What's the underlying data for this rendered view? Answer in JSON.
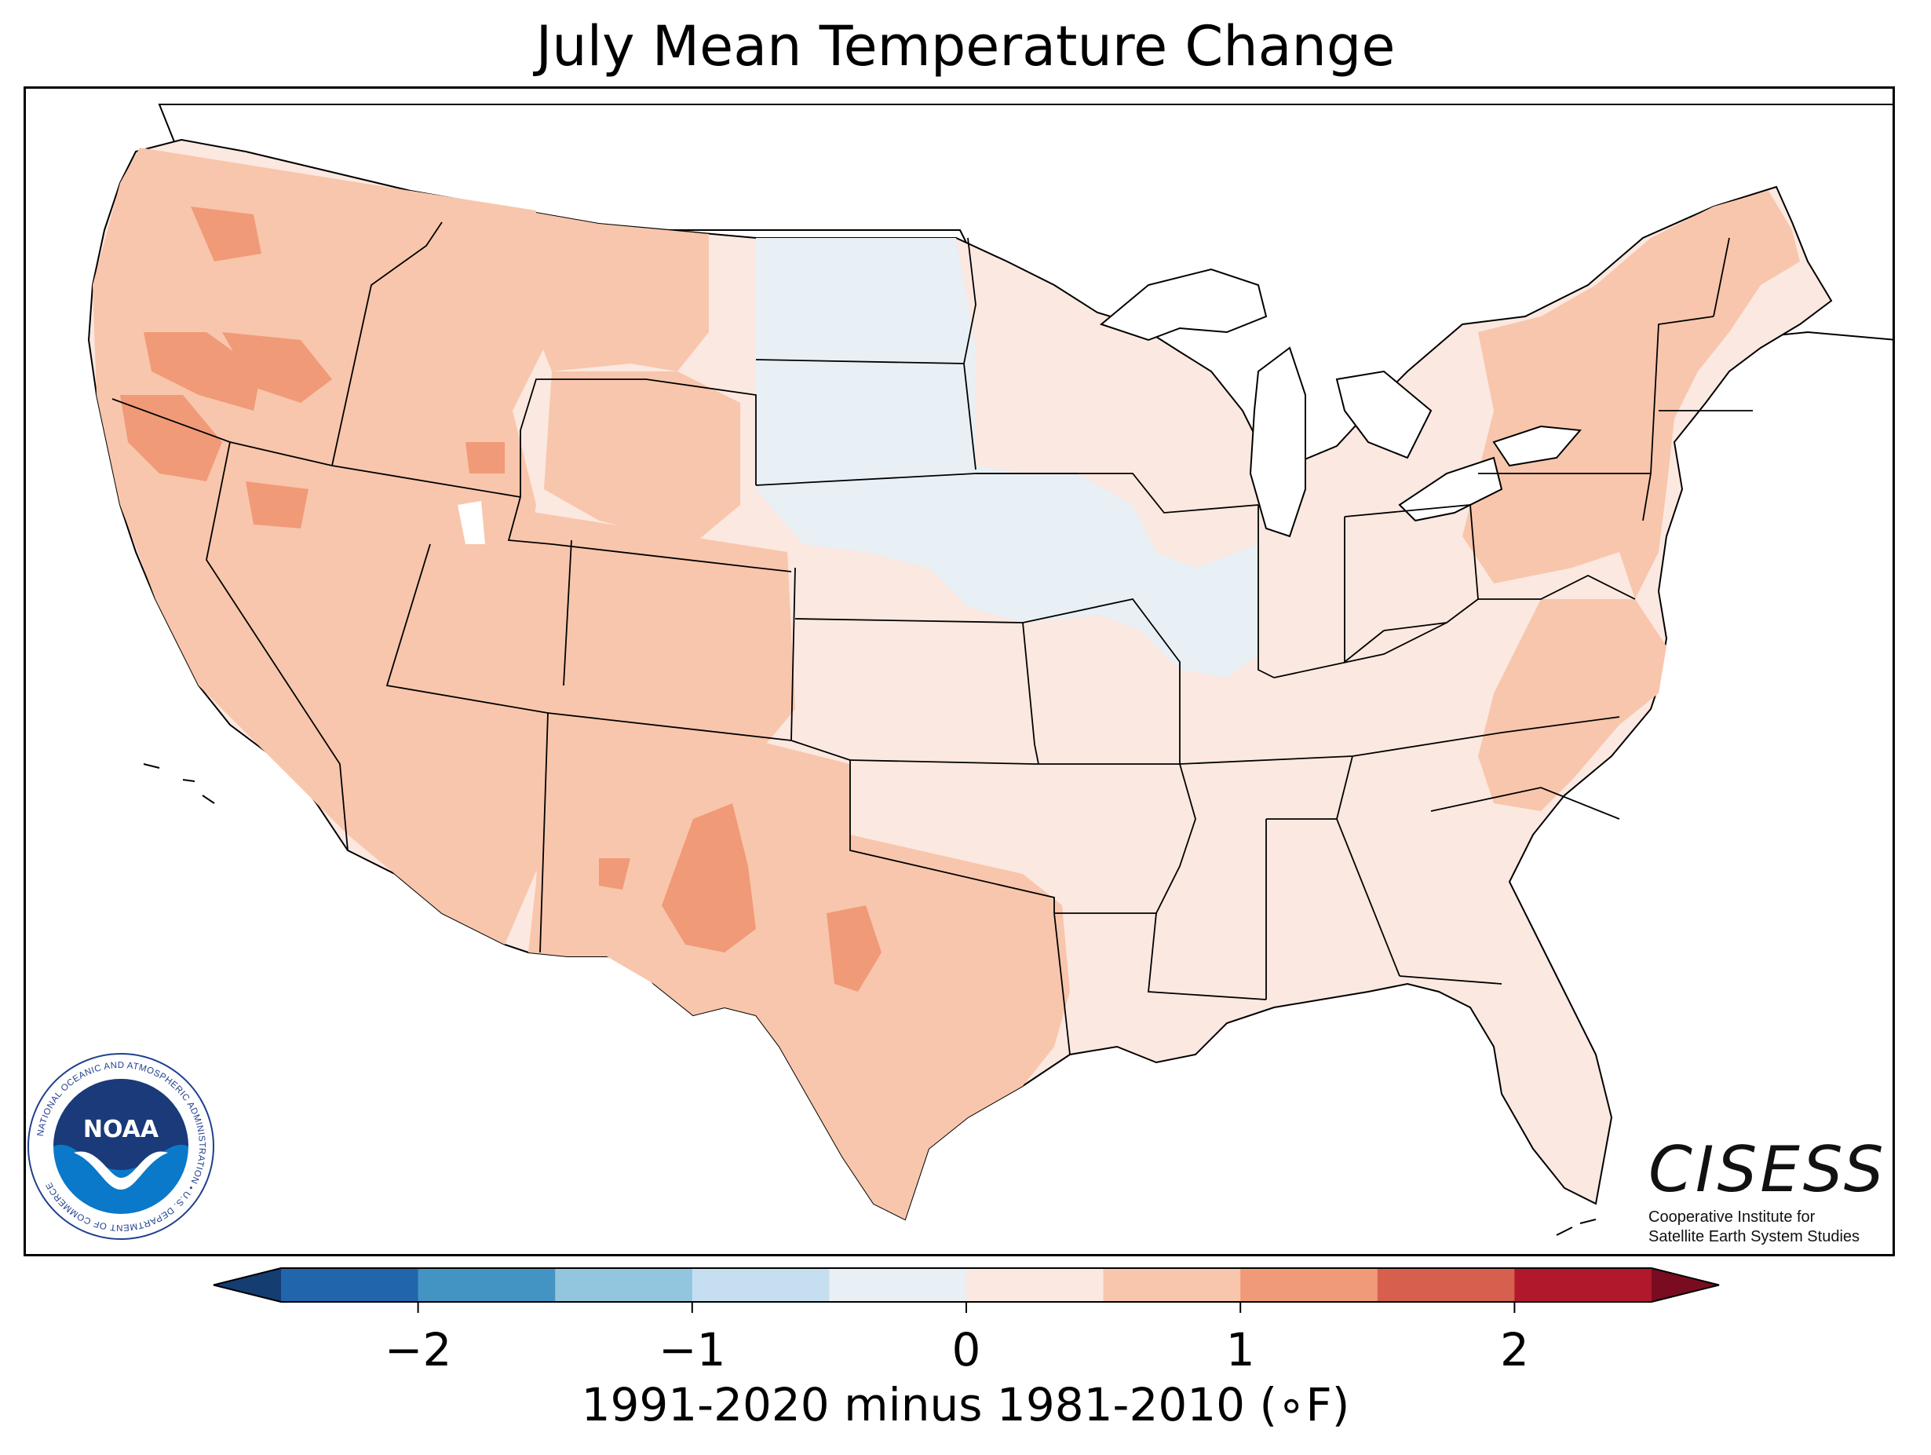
{
  "title": "July Mean Temperature Change",
  "colorbar": {
    "label": "1991-2020 minus 1981-2010 (∘F)",
    "ticks": [
      "−2",
      "−1",
      "0",
      "1",
      "2"
    ],
    "tick_values": [
      -2,
      -1,
      0,
      1,
      2
    ],
    "range": [
      -2.5,
      2.5
    ],
    "bin_edges": [
      -2.5,
      -2.0,
      -1.5,
      -1.0,
      -0.5,
      0.0,
      0.5,
      1.0,
      1.5,
      2.0,
      2.5
    ],
    "colors": [
      "#2166ac",
      "#4393c3",
      "#92c5de",
      "#c5dff0",
      "#e8eff5",
      "#fbe8e0",
      "#f8c6ac",
      "#f09a78",
      "#d6604d",
      "#b2182b"
    ],
    "under_color": "#143d72",
    "over_color": "#7a0c21"
  },
  "map": {
    "region": "Contiguous United States",
    "regions": [
      {
        "name": "Pacific Northwest",
        "value_band": "1.0 to 1.5"
      },
      {
        "name": "California",
        "value_band": "0.5 to 1.5"
      },
      {
        "name": "Great Basin",
        "value_band": "0.5 to 1.0"
      },
      {
        "name": "Northern Rockies",
        "value_band": "0.5 to 1.0"
      },
      {
        "name": "Southwest",
        "value_band": "0.5 to 1.0"
      },
      {
        "name": "New Mexico / West Texas",
        "value_band": "1.0 to 1.5"
      },
      {
        "name": "Texas",
        "value_band": "0.5 to 1.0"
      },
      {
        "name": "Northern Plains",
        "value_band": "-0.5 to 0.0"
      },
      {
        "name": "Upper Midwest / Iowa",
        "value_band": "-0.5 to 0.0"
      },
      {
        "name": "Southeast",
        "value_band": "0.0 to 0.5"
      },
      {
        "name": "Ohio Valley",
        "value_band": "0.0 to 0.5"
      },
      {
        "name": "Northeast",
        "value_band": "0.5 to 1.0"
      }
    ]
  },
  "logos": {
    "noaa": {
      "name": "NOAA",
      "ring_text": "NATIONAL OCEANIC AND ATMOSPHERIC ADMINISTRATION • U.S. DEPARTMENT OF COMMERCE"
    },
    "cisess": {
      "name": "CISESS",
      "subtitle_line1": "Cooperative Institute for",
      "subtitle_line2": "Satellite Earth System Studies"
    }
  }
}
